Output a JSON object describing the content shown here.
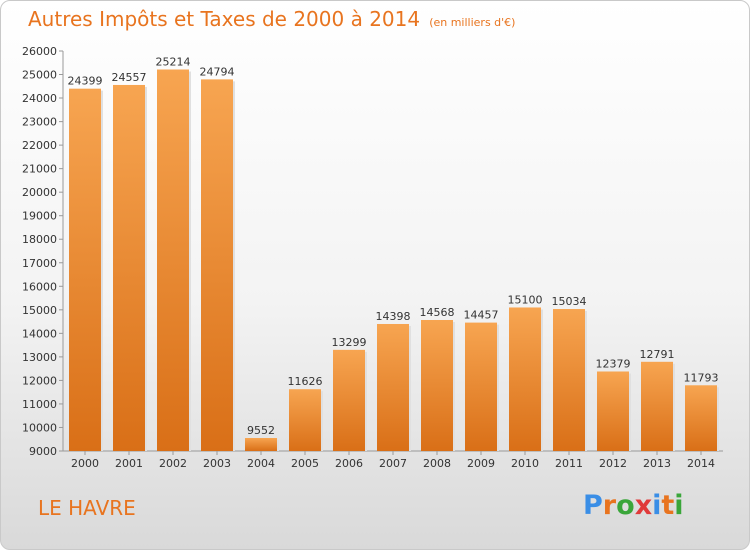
{
  "header": {
    "title": "Autres Impôts et Taxes de 2000 à 2014",
    "subtitle": "(en milliers d'€)"
  },
  "footer": {
    "city": "LE HAVRE",
    "logo_letters": [
      "P",
      "r",
      "o",
      "x",
      "i",
      "t",
      "i"
    ],
    "logo_colors": [
      "#3a8ee6",
      "#e8741f",
      "#3aa63a",
      "#e03a3a",
      "#3a8ee6",
      "#e8741f",
      "#3aa63a"
    ]
  },
  "chart_data": {
    "type": "bar",
    "title": "Autres Impôts et Taxes de 2000 à 2014",
    "subtitle": "(en milliers d'€)",
    "categories": [
      "2000",
      "2001",
      "2002",
      "2003",
      "2004",
      "2005",
      "2006",
      "2007",
      "2008",
      "2009",
      "2010",
      "2011",
      "2012",
      "2013",
      "2014"
    ],
    "values": [
      24399,
      24557,
      25214,
      24794,
      9552,
      11626,
      13299,
      14398,
      14568,
      14457,
      15100,
      15034,
      12379,
      12791,
      11793
    ],
    "ylim": [
      9000,
      26000
    ],
    "yticks": [
      9000,
      10000,
      11000,
      12000,
      13000,
      14000,
      15000,
      16000,
      17000,
      18000,
      19000,
      20000,
      21000,
      22000,
      23000,
      24000,
      25000,
      26000
    ],
    "bar_color": "#f0953a",
    "grid": false,
    "data_labels": true
  }
}
